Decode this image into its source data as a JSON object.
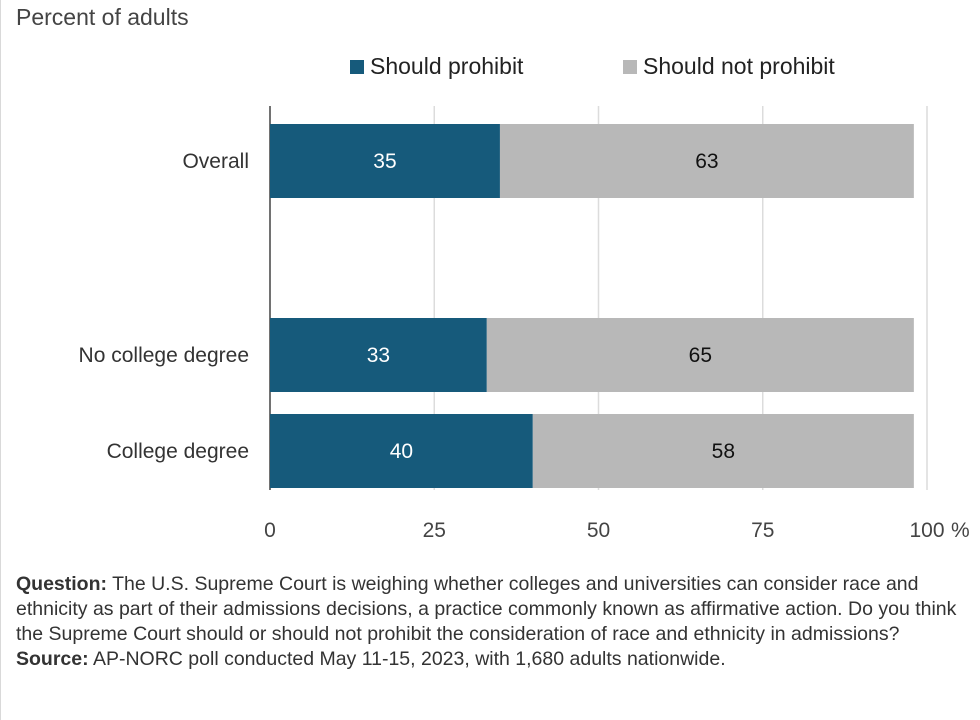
{
  "subtitle": "Percent of adults",
  "colors": {
    "should_prohibit": "#165a7b",
    "should_not_prohibit": "#b8b8b8",
    "grid": "#dcdcdc",
    "axis": "#444444"
  },
  "legend": [
    {
      "label": "Should prohibit",
      "color": "#165a7b"
    },
    {
      "label": "Should not prohibit",
      "color": "#b8b8b8"
    }
  ],
  "chart_data": {
    "type": "bar",
    "orientation": "horizontal",
    "stacked": true,
    "categories": [
      "Overall",
      "No college degree",
      "College degree"
    ],
    "series": [
      {
        "name": "Should prohibit",
        "values": [
          35,
          33,
          40
        ]
      },
      {
        "name": "Should not prohibit",
        "values": [
          63,
          65,
          58
        ]
      }
    ],
    "xlim": [
      0,
      100
    ],
    "xticks": [
      "0",
      "25",
      "50",
      "75",
      "100"
    ],
    "x_unit": "%",
    "grid": true,
    "legend_position": "top"
  },
  "notes": {
    "question_label": "Question:",
    "question_text": "The U.S. Supreme Court is weighing whether colleges and universities can consider race and ethnicity as part of their admissions decisions, a practice commonly known as affirmative action. Do you think the Supreme Court should or should not prohibit the consideration of race and ethnicity in admissions?",
    "source_label": "Source:",
    "source_text": "AP-NORC poll conducted May 11-15, 2023, with 1,680 adults nationwide."
  }
}
